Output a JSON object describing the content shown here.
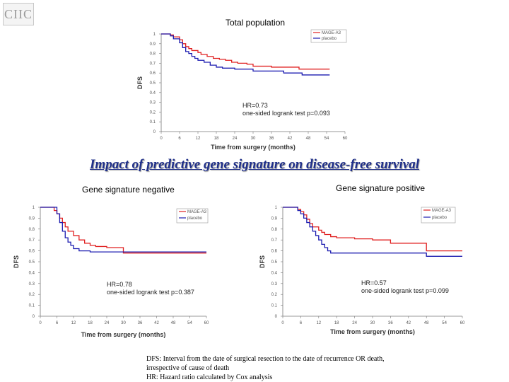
{
  "header": {
    "logo_text": "CIIC",
    "main_title": "Impact of predictive gene signature on disease-free survival"
  },
  "footnotes": [
    "DFS: Interval from the date of surgical resection to the date of recurrence OR death,",
    "irrespective of cause of death",
    "HR: Hazard ratio calculated by Cox analysis"
  ],
  "colors": {
    "mage": "#e02020",
    "placebo": "#1c1cb0",
    "title": "#1f2f8a"
  },
  "chart_data": [
    {
      "type": "line",
      "title": "Total population",
      "xlabel": "Time from surgery (months)",
      "ylabel": "DFS",
      "xlim": [
        0,
        60
      ],
      "ylim": [
        0,
        1
      ],
      "xticks": [
        0,
        6,
        12,
        18,
        24,
        30,
        36,
        42,
        48,
        54,
        60
      ],
      "xtick_labels": [
        "0",
        "6",
        "12",
        "18",
        "24",
        "30",
        "36",
        "42",
        "48",
        "54",
        "60"
      ],
      "yticks": [
        0,
        0.1,
        0.2,
        0.3,
        0.4,
        0.5,
        0.6,
        0.7,
        0.8,
        0.9,
        1
      ],
      "ytick_labels": [
        "0",
        "0.1",
        "0.2",
        "0.3",
        "0.4",
        "0.5",
        "0.6",
        "0.7",
        "0.8",
        "0.9",
        "1"
      ],
      "legend": [
        "MAGE-A3",
        "placebo"
      ],
      "annotation": [
        "HR=0.73",
        "one-sided logrank test p=0.093"
      ],
      "series": [
        {
          "name": "MAGE-A3",
          "x": [
            0,
            3,
            4,
            6,
            7,
            8,
            9,
            10,
            12,
            13,
            15,
            17,
            19,
            21,
            23,
            25,
            28,
            30,
            36,
            45,
            55
          ],
          "y": [
            1.0,
            0.99,
            0.97,
            0.94,
            0.9,
            0.87,
            0.85,
            0.83,
            0.81,
            0.79,
            0.77,
            0.75,
            0.74,
            0.73,
            0.71,
            0.7,
            0.69,
            0.67,
            0.66,
            0.64,
            0.64
          ]
        },
        {
          "name": "placebo",
          "x": [
            0,
            3,
            4,
            6,
            7,
            8,
            9,
            10,
            11,
            12,
            14,
            16,
            18,
            20,
            24,
            30,
            36,
            40,
            46,
            55
          ],
          "y": [
            1.0,
            0.98,
            0.95,
            0.91,
            0.86,
            0.82,
            0.8,
            0.77,
            0.75,
            0.73,
            0.71,
            0.68,
            0.66,
            0.65,
            0.64,
            0.62,
            0.62,
            0.6,
            0.58,
            0.58
          ]
        }
      ]
    },
    {
      "type": "line",
      "title": "Gene signature negative",
      "xlabel": "Time from surgery (months)",
      "ylabel": "DFS",
      "xlim": [
        0,
        60
      ],
      "ylim": [
        0,
        1
      ],
      "xticks": [
        0,
        6,
        12,
        18,
        24,
        30,
        36,
        42,
        48,
        54,
        60
      ],
      "xtick_labels": [
        "0",
        "6",
        "12",
        "18",
        "24",
        "30",
        "36",
        "42",
        "48",
        "54",
        "60"
      ],
      "yticks": [
        0,
        0.1,
        0.2,
        0.3,
        0.4,
        0.5,
        0.6,
        0.7,
        0.8,
        0.9,
        1
      ],
      "ytick_labels": [
        "0",
        "0.1",
        "0.2",
        "0.3",
        "0.4",
        "0.5",
        "0.6",
        "0.7",
        "0.8",
        "0.9",
        "1"
      ],
      "legend": [
        "MAGE-A3",
        "placebo"
      ],
      "annotation": [
        "HR=0.78",
        "one-sided logrank test p=0.387"
      ],
      "series": [
        {
          "name": "MAGE-A3",
          "x": [
            0,
            5,
            6,
            7,
            8,
            9,
            10,
            12,
            14,
            16,
            18,
            20,
            24,
            30,
            36,
            60
          ],
          "y": [
            1.0,
            0.97,
            0.94,
            0.9,
            0.86,
            0.82,
            0.78,
            0.74,
            0.7,
            0.67,
            0.65,
            0.64,
            0.63,
            0.58,
            0.58,
            0.58
          ]
        },
        {
          "name": "placebo",
          "x": [
            0,
            6,
            7,
            8,
            9,
            10,
            11,
            12,
            14,
            18,
            24,
            60
          ],
          "y": [
            1.0,
            0.94,
            0.86,
            0.78,
            0.72,
            0.68,
            0.65,
            0.62,
            0.6,
            0.59,
            0.59,
            0.59
          ]
        }
      ]
    },
    {
      "type": "line",
      "title": "Gene signature positive",
      "xlabel": "Time from surgery (months)",
      "ylabel": "DFS",
      "xlim": [
        0,
        60
      ],
      "ylim": [
        0,
        1
      ],
      "xticks": [
        0,
        6,
        12,
        18,
        24,
        30,
        36,
        42,
        48,
        54,
        60
      ],
      "xtick_labels": [
        "0",
        "6",
        "12",
        "18",
        "24",
        "30",
        "36",
        "42",
        "48",
        "54",
        "60"
      ],
      "yticks": [
        0,
        0.1,
        0.2,
        0.3,
        0.4,
        0.5,
        0.6,
        0.7,
        0.8,
        0.9,
        1
      ],
      "ytick_labels": [
        "0",
        "0.1",
        "0.2",
        "0.3",
        "0.4",
        "0.5",
        "0.6",
        "0.7",
        "0.8",
        "0.9",
        "1"
      ],
      "legend": [
        "MAGE-A3",
        "placebo"
      ],
      "annotation": [
        "HR=0.57",
        "one-sided logrank test p=0.099"
      ],
      "series": [
        {
          "name": "MAGE-A3",
          "x": [
            0,
            5,
            6,
            7,
            8,
            9,
            10,
            12,
            13,
            14,
            16,
            18,
            20,
            24,
            30,
            36,
            40,
            48,
            55,
            60
          ],
          "y": [
            1.0,
            0.98,
            0.96,
            0.93,
            0.89,
            0.85,
            0.82,
            0.79,
            0.77,
            0.75,
            0.73,
            0.72,
            0.72,
            0.71,
            0.7,
            0.67,
            0.67,
            0.6,
            0.6,
            0.6
          ]
        },
        {
          "name": "placebo",
          "x": [
            0,
            5,
            6,
            7,
            8,
            9,
            10,
            11,
            12,
            13,
            14,
            15,
            16,
            20,
            26,
            36,
            48,
            60
          ],
          "y": [
            1.0,
            0.97,
            0.94,
            0.9,
            0.86,
            0.82,
            0.78,
            0.74,
            0.7,
            0.66,
            0.63,
            0.6,
            0.58,
            0.58,
            0.58,
            0.58,
            0.55,
            0.55
          ]
        }
      ]
    }
  ]
}
